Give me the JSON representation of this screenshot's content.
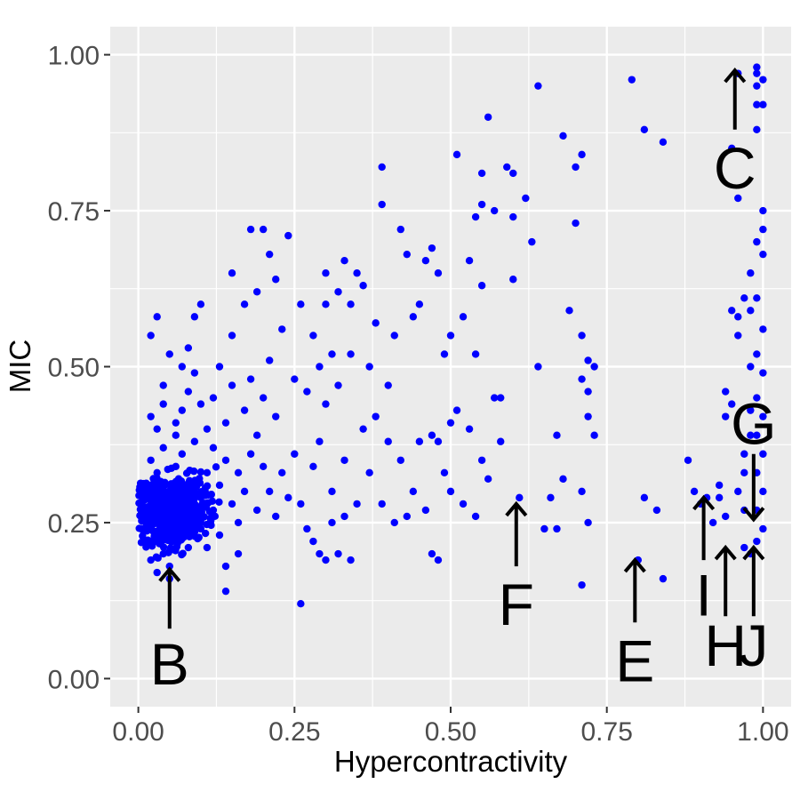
{
  "chart_data": {
    "type": "scatter",
    "title": "",
    "xlabel": "Hypercontractivity",
    "ylabel": "MIC",
    "xlim": [
      -0.045,
      1.045
    ],
    "ylim": [
      -0.045,
      1.045
    ],
    "x_ticks": [
      0.0,
      0.25,
      0.5,
      0.75,
      1.0
    ],
    "x_tick_labels": [
      "0.00",
      "0.25",
      "0.50",
      "0.75",
      "1.00"
    ],
    "y_ticks": [
      0.0,
      0.25,
      0.5,
      0.75,
      1.0
    ],
    "y_tick_labels": [
      "0.00",
      "0.25",
      "0.50",
      "0.75",
      "1.00"
    ],
    "grid": true,
    "point_color": "#0000ff",
    "panel_background": "#ebebeb",
    "points": [
      [
        0.04,
        0.28
      ],
      [
        0.03,
        0.26
      ],
      [
        0.05,
        0.3
      ],
      [
        0.02,
        0.24
      ],
      [
        0.06,
        0.22
      ],
      [
        0.03,
        0.33
      ],
      [
        0.04,
        0.2
      ],
      [
        0.07,
        0.27
      ],
      [
        0.02,
        0.31
      ],
      [
        0.05,
        0.25
      ],
      [
        0.01,
        0.29
      ],
      [
        0.08,
        0.31
      ],
      [
        0.03,
        0.22
      ],
      [
        0.06,
        0.34
      ],
      [
        0.04,
        0.37
      ],
      [
        0.02,
        0.19
      ],
      [
        0.09,
        0.25
      ],
      [
        0.05,
        0.18
      ],
      [
        0.07,
        0.36
      ],
      [
        0.03,
        0.4
      ],
      [
        0.1,
        0.29
      ],
      [
        0.02,
        0.35
      ],
      [
        0.06,
        0.41
      ],
      [
        0.01,
        0.26
      ],
      [
        0.11,
        0.33
      ],
      [
        0.04,
        0.44
      ],
      [
        0.08,
        0.21
      ],
      [
        0.05,
        0.16
      ],
      [
        0.03,
        0.17
      ],
      [
        0.12,
        0.27
      ],
      [
        0.07,
        0.43
      ],
      [
        0.09,
        0.38
      ],
      [
        0.13,
        0.31
      ],
      [
        0.02,
        0.42
      ],
      [
        0.06,
        0.29
      ],
      [
        0.1,
        0.24
      ],
      [
        0.14,
        0.35
      ],
      [
        0.04,
        0.47
      ],
      [
        0.08,
        0.46
      ],
      [
        0.11,
        0.4
      ],
      [
        0.15,
        0.28
      ],
      [
        0.03,
        0.58
      ],
      [
        0.05,
        0.52
      ],
      [
        0.09,
        0.49
      ],
      [
        0.12,
        0.45
      ],
      [
        0.16,
        0.33
      ],
      [
        0.02,
        0.55
      ],
      [
        0.07,
        0.5
      ],
      [
        0.13,
        0.23
      ],
      [
        0.17,
        0.3
      ],
      [
        0.1,
        0.44
      ],
      [
        0.14,
        0.41
      ],
      [
        0.18,
        0.36
      ],
      [
        0.06,
        0.39
      ],
      [
        0.19,
        0.27
      ],
      [
        0.15,
        0.47
      ],
      [
        0.11,
        0.21
      ],
      [
        0.2,
        0.34
      ],
      [
        0.16,
        0.25
      ],
      [
        0.12,
        0.37
      ],
      [
        0.21,
        0.3
      ],
      [
        0.17,
        0.43
      ],
      [
        0.08,
        0.53
      ],
      [
        0.22,
        0.26
      ],
      [
        0.18,
        0.48
      ],
      [
        0.13,
        0.5
      ],
      [
        0.23,
        0.33
      ],
      [
        0.19,
        0.39
      ],
      [
        0.14,
        0.18
      ],
      [
        0.24,
        0.29
      ],
      [
        0.2,
        0.45
      ],
      [
        0.15,
        0.55
      ],
      [
        0.25,
        0.36
      ],
      [
        0.21,
        0.51
      ],
      [
        0.16,
        0.2
      ],
      [
        0.26,
        0.28
      ],
      [
        0.22,
        0.42
      ],
      [
        0.17,
        0.6
      ],
      [
        0.27,
        0.24
      ],
      [
        0.23,
        0.56
      ],
      [
        0.14,
        0.14
      ],
      [
        0.18,
        0.72
      ],
      [
        0.2,
        0.72
      ],
      [
        0.24,
        0.71
      ],
      [
        0.21,
        0.68
      ],
      [
        0.15,
        0.65
      ],
      [
        0.19,
        0.62
      ],
      [
        0.1,
        0.6
      ],
      [
        0.09,
        0.58
      ],
      [
        0.22,
        0.64
      ],
      [
        0.26,
        0.6
      ],
      [
        0.28,
        0.34
      ],
      [
        0.29,
        0.38
      ],
      [
        0.3,
        0.44
      ],
      [
        0.31,
        0.3
      ],
      [
        0.32,
        0.47
      ],
      [
        0.33,
        0.35
      ],
      [
        0.34,
        0.52
      ],
      [
        0.35,
        0.28
      ],
      [
        0.36,
        0.4
      ],
      [
        0.28,
        0.55
      ],
      [
        0.3,
        0.6
      ],
      [
        0.32,
        0.62
      ],
      [
        0.34,
        0.6
      ],
      [
        0.36,
        0.63
      ],
      [
        0.3,
        0.65
      ],
      [
        0.33,
        0.67
      ],
      [
        0.35,
        0.65
      ],
      [
        0.29,
        0.5
      ],
      [
        0.31,
        0.52
      ],
      [
        0.27,
        0.46
      ],
      [
        0.25,
        0.48
      ],
      [
        0.28,
        0.22
      ],
      [
        0.3,
        0.19
      ],
      [
        0.32,
        0.2
      ],
      [
        0.34,
        0.19
      ],
      [
        0.26,
        0.12
      ],
      [
        0.29,
        0.2
      ],
      [
        0.33,
        0.26
      ],
      [
        0.31,
        0.25
      ],
      [
        0.37,
        0.5
      ],
      [
        0.38,
        0.57
      ],
      [
        0.39,
        0.82
      ],
      [
        0.39,
        0.76
      ],
      [
        0.4,
        0.47
      ],
      [
        0.41,
        0.55
      ],
      [
        0.42,
        0.72
      ],
      [
        0.43,
        0.68
      ],
      [
        0.44,
        0.58
      ],
      [
        0.45,
        0.6
      ],
      [
        0.38,
        0.42
      ],
      [
        0.4,
        0.38
      ],
      [
        0.42,
        0.35
      ],
      [
        0.44,
        0.3
      ],
      [
        0.46,
        0.27
      ],
      [
        0.37,
        0.33
      ],
      [
        0.39,
        0.28
      ],
      [
        0.41,
        0.25
      ],
      [
        0.43,
        0.26
      ],
      [
        0.45,
        0.38
      ],
      [
        0.46,
        0.67
      ],
      [
        0.47,
        0.69
      ],
      [
        0.48,
        0.65
      ],
      [
        0.49,
        0.52
      ],
      [
        0.5,
        0.55
      ],
      [
        0.47,
        0.39
      ],
      [
        0.48,
        0.38
      ],
      [
        0.5,
        0.41
      ],
      [
        0.47,
        0.2
      ],
      [
        0.48,
        0.19
      ],
      [
        0.49,
        0.33
      ],
      [
        0.5,
        0.3
      ],
      [
        0.51,
        0.43
      ],
      [
        0.52,
        0.58
      ],
      [
        0.51,
        0.84
      ],
      [
        0.53,
        0.67
      ],
      [
        0.54,
        0.74
      ],
      [
        0.55,
        0.76
      ],
      [
        0.55,
        0.81
      ],
      [
        0.56,
        0.9
      ],
      [
        0.57,
        0.75
      ],
      [
        0.55,
        0.63
      ],
      [
        0.54,
        0.52
      ],
      [
        0.53,
        0.4
      ],
      [
        0.55,
        0.35
      ],
      [
        0.56,
        0.32
      ],
      [
        0.52,
        0.28
      ],
      [
        0.54,
        0.26
      ],
      [
        0.57,
        0.45
      ],
      [
        0.58,
        0.38
      ],
      [
        0.59,
        0.82
      ],
      [
        0.6,
        0.81
      ],
      [
        0.6,
        0.74
      ],
      [
        0.62,
        0.77
      ],
      [
        0.63,
        0.7
      ],
      [
        0.6,
        0.64
      ],
      [
        0.58,
        0.45
      ],
      [
        0.61,
        0.29
      ],
      [
        0.64,
        0.95
      ],
      [
        0.64,
        0.5
      ],
      [
        0.65,
        0.24
      ],
      [
        0.66,
        0.29
      ],
      [
        0.67,
        0.39
      ],
      [
        0.67,
        0.24
      ],
      [
        0.68,
        0.32
      ],
      [
        0.68,
        0.87
      ],
      [
        0.69,
        0.59
      ],
      [
        0.7,
        0.73
      ],
      [
        0.7,
        0.82
      ],
      [
        0.71,
        0.84
      ],
      [
        0.71,
        0.55
      ],
      [
        0.71,
        0.48
      ],
      [
        0.72,
        0.51
      ],
      [
        0.72,
        0.46
      ],
      [
        0.73,
        0.39
      ],
      [
        0.71,
        0.3
      ],
      [
        0.72,
        0.25
      ],
      [
        0.71,
        0.15
      ],
      [
        0.73,
        0.5
      ],
      [
        0.72,
        0.42
      ],
      [
        0.79,
        0.96
      ],
      [
        0.81,
        0.88
      ],
      [
        0.84,
        0.86
      ],
      [
        0.8,
        0.19
      ],
      [
        0.81,
        0.29
      ],
      [
        0.83,
        0.27
      ],
      [
        0.84,
        0.16
      ],
      [
        0.88,
        0.35
      ],
      [
        0.89,
        0.3
      ],
      [
        0.91,
        0.29
      ],
      [
        0.9,
        0.28
      ],
      [
        0.92,
        0.25
      ],
      [
        0.93,
        0.31
      ],
      [
        0.94,
        0.46
      ],
      [
        0.94,
        0.42
      ],
      [
        0.95,
        0.59
      ],
      [
        0.95,
        0.85
      ],
      [
        0.96,
        0.97
      ],
      [
        0.96,
        0.77
      ],
      [
        0.96,
        0.58
      ],
      [
        0.97,
        0.21
      ],
      [
        0.97,
        0.27
      ],
      [
        0.96,
        0.3
      ],
      [
        0.97,
        0.33
      ],
      [
        0.98,
        0.5
      ],
      [
        0.98,
        0.43
      ],
      [
        0.97,
        0.61
      ],
      [
        0.98,
        0.65
      ],
      [
        0.98,
        0.59
      ],
      [
        0.99,
        0.98
      ],
      [
        0.99,
        0.97
      ],
      [
        0.99,
        0.95
      ],
      [
        0.99,
        0.92
      ],
      [
        1.0,
        0.96
      ],
      [
        1.0,
        0.92
      ],
      [
        0.99,
        0.88
      ],
      [
        1.0,
        0.75
      ],
      [
        1.0,
        0.72
      ],
      [
        1.0,
        0.68
      ],
      [
        0.99,
        0.61
      ],
      [
        1.0,
        0.56
      ],
      [
        0.99,
        0.52
      ],
      [
        1.0,
        0.49
      ],
      [
        0.99,
        0.45
      ],
      [
        1.0,
        0.42
      ],
      [
        0.99,
        0.39
      ],
      [
        1.0,
        0.36
      ],
      [
        0.99,
        0.33
      ],
      [
        1.0,
        0.3
      ],
      [
        0.99,
        0.27
      ],
      [
        1.0,
        0.24
      ],
      [
        0.99,
        0.22
      ],
      [
        0.98,
        0.2
      ],
      [
        0.99,
        0.7
      ],
      [
        0.96,
        0.55
      ],
      [
        0.95,
        0.44
      ],
      [
        0.93,
        0.29
      ],
      [
        0.94,
        0.26
      ],
      [
        0.97,
        0.36
      ],
      [
        0.98,
        0.39
      ]
    ],
    "annotations": [
      {
        "label": "B",
        "arrow_from": [
          0.05,
          0.08
        ],
        "arrow_to": [
          0.05,
          0.175
        ],
        "label_at": [
          0.05,
          0.025
        ]
      },
      {
        "label": "C",
        "arrow_from": [
          0.955,
          0.88
        ],
        "arrow_to": [
          0.955,
          0.975
        ],
        "label_at": [
          0.955,
          0.82
        ]
      },
      {
        "label": "E",
        "arrow_from": [
          0.795,
          0.09
        ],
        "arrow_to": [
          0.795,
          0.19
        ],
        "label_at": [
          0.795,
          0.03
        ]
      },
      {
        "label": "F",
        "arrow_from": [
          0.605,
          0.18
        ],
        "arrow_to": [
          0.605,
          0.28
        ],
        "label_at": [
          0.605,
          0.12
        ]
      },
      {
        "label": "G",
        "arrow_from": [
          0.985,
          0.36
        ],
        "arrow_to": [
          0.985,
          0.255
        ],
        "label_at": [
          0.985,
          0.41
        ]
      },
      {
        "label": "H",
        "arrow_from": [
          0.94,
          0.1
        ],
        "arrow_to": [
          0.94,
          0.21
        ],
        "label_at": [
          0.94,
          0.055
        ]
      },
      {
        "label": "I",
        "arrow_from": [
          0.905,
          0.19
        ],
        "arrow_to": [
          0.905,
          0.29
        ],
        "label_at": [
          0.905,
          0.135
        ]
      },
      {
        "label": "J",
        "arrow_from": [
          0.985,
          0.1
        ],
        "arrow_to": [
          0.985,
          0.21
        ],
        "label_at": [
          0.985,
          0.055
        ]
      }
    ]
  }
}
